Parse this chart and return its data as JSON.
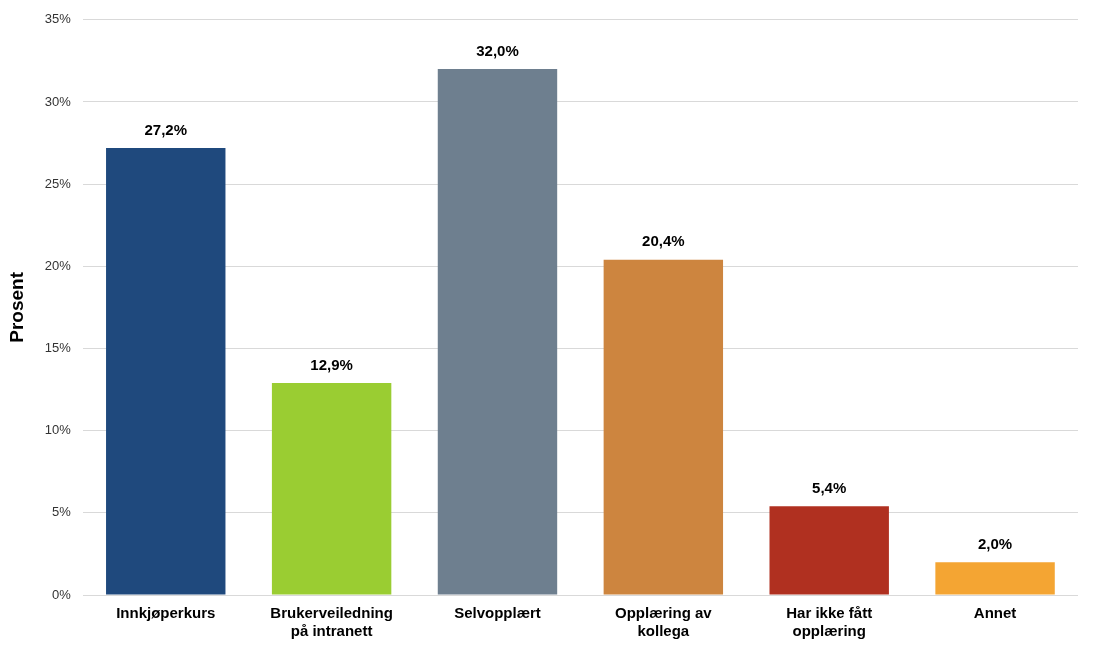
{
  "chart_data": {
    "type": "bar",
    "ylabel": "Prosent",
    "categories": [
      "Innkjøperkurs",
      "Brukerveiledning på intranett",
      "Selvopplært",
      "Opplæring av kollega",
      "Har ikke fått opplæring",
      "Annet"
    ],
    "values": [
      27.2,
      12.9,
      32.0,
      20.4,
      5.4,
      2.0
    ],
    "colors": [
      "#1f497d",
      "#9acd32",
      "#6e7f8f",
      "#cd853f",
      "#b03020",
      "#f4a533"
    ],
    "value_labels": [
      "27,2%",
      "12,9%",
      "32,0%",
      "20,4%",
      "5,4%",
      "2,0%"
    ],
    "ylim": [
      0,
      35
    ],
    "yticks": [
      {
        "value": 0,
        "label": "0%"
      },
      {
        "value": 5,
        "label": "5%"
      },
      {
        "value": 10,
        "label": "10%"
      },
      {
        "value": 15,
        "label": "15%"
      },
      {
        "value": 20,
        "label": "20%"
      },
      {
        "value": 25,
        "label": "25%"
      },
      {
        "value": 30,
        "label": "30%"
      },
      {
        "value": 35,
        "label": "35%"
      }
    ],
    "grid": "y",
    "legend": false
  }
}
